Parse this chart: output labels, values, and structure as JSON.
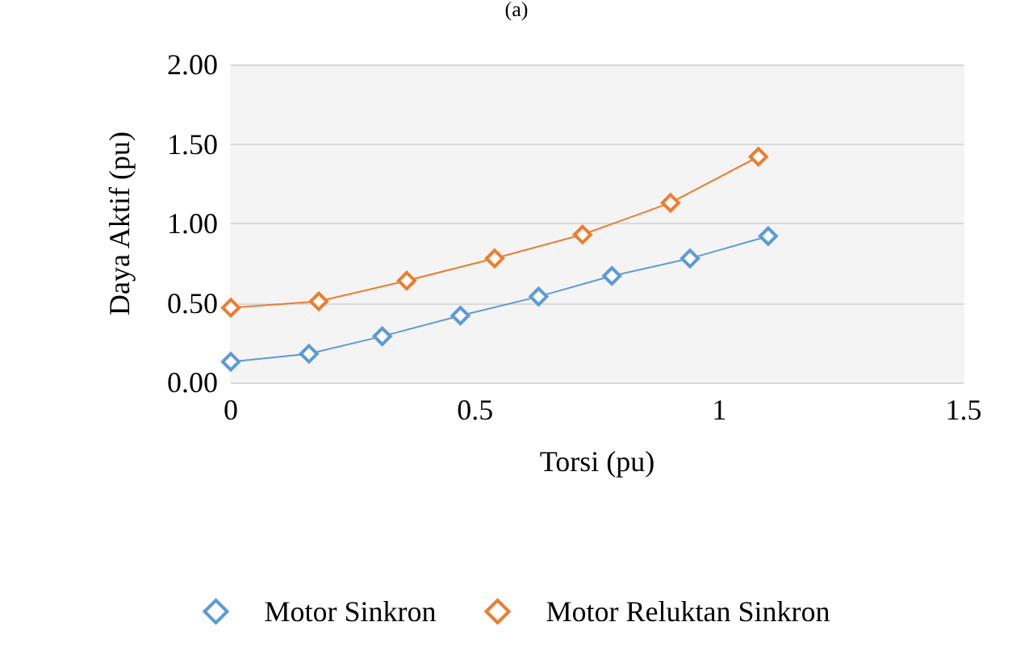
{
  "chart_data": {
    "type": "line",
    "title": "(a)",
    "xlabel": "Torsi (pu)",
    "ylabel": "Daya Aktif (pu)",
    "xlim": [
      0,
      1.5
    ],
    "xticks": [
      0,
      0.5,
      1,
      1.5
    ],
    "ylim": [
      0,
      2
    ],
    "yticks": [
      {
        "value": 0,
        "label": "0.00"
      },
      {
        "value": 0.5,
        "label": "0.50"
      },
      {
        "value": 1,
        "label": "1.00"
      },
      {
        "value": 1.5,
        "label": "1.50"
      },
      {
        "value": 2,
        "label": "2.00"
      }
    ],
    "grid": "y",
    "legend": "bottom",
    "marker": "diamond",
    "line_style": "solid",
    "series": [
      {
        "name": "Motor Sinkron",
        "color": "#5b9bd5",
        "x": [
          0,
          0.16,
          0.31,
          0.47,
          0.63,
          0.78,
          0.94,
          1.1
        ],
        "values": [
          0.13,
          0.18,
          0.29,
          0.42,
          0.54,
          0.67,
          0.78,
          0.92
        ]
      },
      {
        "name": "Motor Reluktan Sinkron",
        "color": "#ed7d31",
        "x": [
          0,
          0.18,
          0.36,
          0.54,
          0.72,
          0.9,
          1.08
        ],
        "values": [
          0.47,
          0.51,
          0.64,
          0.78,
          0.93,
          1.13,
          1.42
        ]
      }
    ]
  }
}
